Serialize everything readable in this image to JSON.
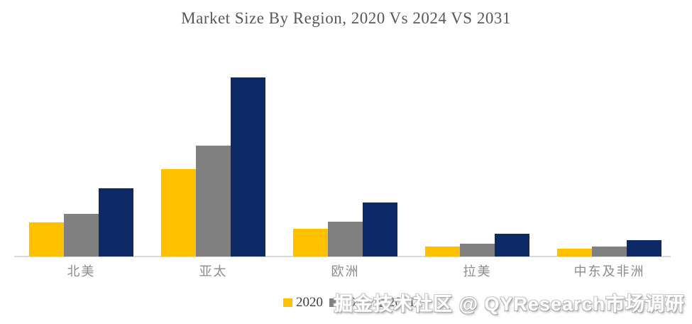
{
  "watermark": "掘金技术社区 @ QYResearch市场调研",
  "colors": {
    "series_2020": "#FFC000",
    "series_2024": "#808080",
    "series_2031": "#0E2A66",
    "axis_line": "#D9D9D9",
    "title_text": "#595959",
    "axis_label_text": "#8C8C8C",
    "legend_text": "#404040",
    "background": "#FFFFFF"
  },
  "chart_data": {
    "type": "bar",
    "title": "Market Size By Region, 2020 Vs 2024 VS 2031",
    "categories": [
      "北美",
      "亚太",
      "欧洲",
      "拉美",
      "中东及非洲"
    ],
    "series": [
      {
        "name": "2020",
        "color": "#FFC000",
        "values": [
          19,
          49,
          15.5,
          5.5,
          4.5
        ]
      },
      {
        "name": "2024",
        "color": "#808080",
        "values": [
          24,
          62,
          19.5,
          7,
          5.5
        ]
      },
      {
        "name": "2031",
        "color": "#0E2A66",
        "values": [
          38,
          100,
          30,
          12.5,
          9
        ]
      }
    ],
    "xlabel": "",
    "ylabel": "",
    "ylim": [
      0,
      100
    ],
    "units": "relative market size (no numeric axis shown; values normalized to 亚太 2031 = 100)",
    "grid": false,
    "y_axis_visible": false,
    "legend_position": "bottom"
  }
}
